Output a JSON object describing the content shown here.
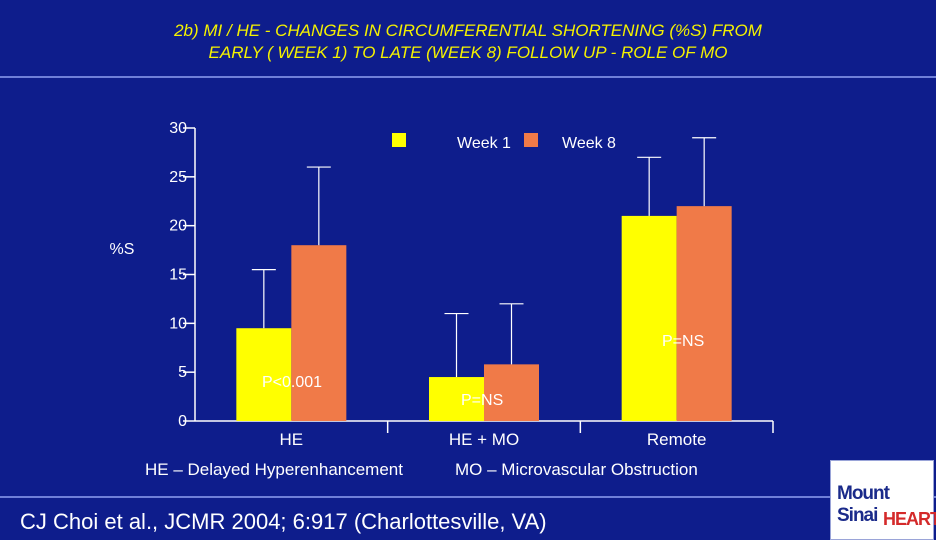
{
  "title": {
    "line1": "2b) MI / HE - CHANGES IN CIRCUMFERENTIAL SHORTENING (%S) FROM",
    "line2": "EARLY ( WEEK 1) TO LATE (WEEK 8) FOLLOW UP  - ROLE OF MO"
  },
  "notes": {
    "he_def": "HE – Delayed Hyperenhancement",
    "mo_def": "MO – Microvascular Obstruction"
  },
  "citation": "CJ Choi et al., JCMR 2004; 6:917 (Charlottesville, VA)",
  "logo": {
    "mount": "Mount",
    "sinai": "Sinai",
    "heart": "HEART"
  },
  "colors": {
    "background": "#0e1d8c",
    "title_text": "#f5f200",
    "week1": "#ffff00",
    "week8": "#f07a48",
    "axis": "#ffffff"
  },
  "chart_data": {
    "type": "bar",
    "title": "",
    "xlabel": "",
    "ylabel": "%S",
    "ylim": [
      0,
      30
    ],
    "yticks": [
      0,
      5,
      10,
      15,
      20,
      25,
      30
    ],
    "categories": [
      "HE",
      "HE + MO",
      "Remote"
    ],
    "series": [
      {
        "name": "Week 1",
        "color": "#ffff00",
        "values": [
          9.5,
          4.5,
          21
        ],
        "error_upper": [
          15.5,
          11,
          27
        ]
      },
      {
        "name": "Week 8",
        "color": "#f07a48",
        "values": [
          18,
          5.8,
          22
        ],
        "error_upper": [
          26,
          12,
          29
        ]
      }
    ],
    "annotations": [
      "P<0.001",
      "P=NS",
      "P=NS"
    ],
    "legend_position": "top"
  }
}
